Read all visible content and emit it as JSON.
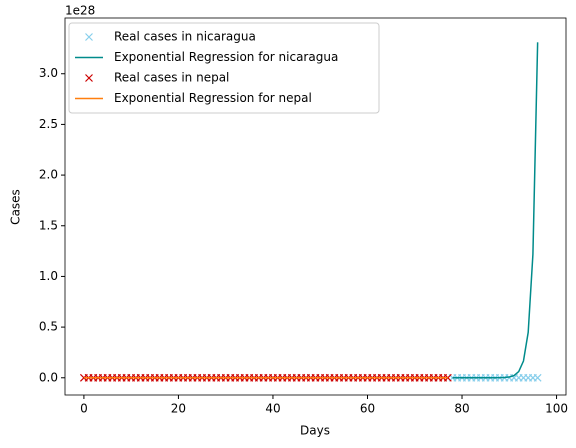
{
  "chart_data": {
    "type": "line",
    "x_label": "Days",
    "y_label": "Cases",
    "y_offset_label": "1e28",
    "xlim": [
      -4,
      102
    ],
    "ylim": [
      -0.17,
      3.55
    ],
    "xticks": [
      0,
      20,
      40,
      60,
      80,
      100
    ],
    "yticks": [
      {
        "value": 0,
        "label": "0.0"
      },
      0.5,
      {
        "value": 1,
        "label": "1.0"
      },
      1.5,
      {
        "value": 2,
        "label": "2.0"
      },
      2.5,
      {
        "value": 3,
        "label": "3.0"
      }
    ],
    "legend": "upper left",
    "series": [
      {
        "name": "Real cases in nicaragua",
        "color": "#87ceeb",
        "style": "marker",
        "x": [
          78,
          79,
          80,
          81,
          82,
          83,
          84,
          85,
          86,
          87,
          88,
          89,
          90,
          91,
          92,
          93,
          94,
          95,
          96
        ],
        "values": [
          0,
          0,
          0,
          0,
          0,
          0,
          0,
          0,
          0,
          0,
          0,
          0,
          0,
          0,
          0,
          0,
          0,
          0,
          0
        ]
      },
      {
        "name": "Exponential Regression for nicaragua",
        "color": "#008b8b",
        "style": "line",
        "x": [
          78,
          79,
          80,
          81,
          82,
          83,
          84,
          85,
          86,
          87,
          88,
          89,
          90,
          91,
          92,
          93,
          94,
          95,
          96
        ],
        "values": [
          0,
          0,
          0,
          0,
          0,
          0,
          0,
          0,
          0.0002,
          0.0004,
          0.0011,
          0.003,
          0.008,
          0.022,
          0.061,
          0.165,
          0.448,
          1.218,
          3.31
        ]
      },
      {
        "name": "Real cases in nepal",
        "color": "#cc0000",
        "style": "marker",
        "x": [
          0,
          1,
          2,
          3,
          4,
          5,
          6,
          7,
          8,
          9,
          10,
          11,
          12,
          13,
          14,
          15,
          16,
          17,
          18,
          19,
          20,
          21,
          22,
          23,
          24,
          25,
          26,
          27,
          28,
          29,
          30,
          31,
          32,
          33,
          34,
          35,
          36,
          37,
          38,
          39,
          40,
          41,
          42,
          43,
          44,
          45,
          46,
          47,
          48,
          49,
          50,
          51,
          52,
          53,
          54,
          55,
          56,
          57,
          58,
          59,
          60,
          61,
          62,
          63,
          64,
          65,
          66,
          67,
          68,
          69,
          70,
          71,
          72,
          73,
          74,
          75,
          76,
          77
        ],
        "values": [
          0,
          0,
          0,
          0,
          0,
          0,
          0,
          0,
          0,
          0,
          0,
          0,
          0,
          0,
          0,
          0,
          0,
          0,
          0,
          0,
          0,
          0,
          0,
          0,
          0,
          0,
          0,
          0,
          0,
          0,
          0,
          0,
          0,
          0,
          0,
          0,
          0,
          0,
          0,
          0,
          0,
          0,
          0,
          0,
          0,
          0,
          0,
          0,
          0,
          0,
          0,
          0,
          0,
          0,
          0,
          0,
          0,
          0,
          0,
          0,
          0,
          0,
          0,
          0,
          0,
          0,
          0,
          0,
          0,
          0,
          0,
          0,
          0,
          0,
          0,
          0,
          0,
          0
        ]
      },
      {
        "name": "Exponential Regression for nepal",
        "color": "#ff7f0e",
        "style": "line",
        "x": [
          0,
          1,
          2,
          3,
          4,
          5,
          6,
          7,
          8,
          9,
          10,
          11,
          12,
          13,
          14,
          15,
          16,
          17,
          18,
          19,
          20,
          21,
          22,
          23,
          24,
          25,
          26,
          27,
          28,
          29,
          30,
          31,
          32,
          33,
          34,
          35,
          36,
          37,
          38,
          39,
          40,
          41,
          42,
          43,
          44,
          45,
          46,
          47,
          48,
          49,
          50,
          51,
          52,
          53,
          54,
          55,
          56,
          57,
          58,
          59,
          60,
          61,
          62,
          63,
          64,
          65,
          66,
          67,
          68,
          69,
          70,
          71,
          72,
          73,
          74,
          75,
          76,
          77
        ],
        "values": [
          0,
          0,
          0,
          0,
          0,
          0,
          0,
          0,
          0,
          0,
          0,
          0,
          0,
          0,
          0,
          0,
          0,
          0,
          0,
          0,
          0,
          0,
          0,
          0,
          0,
          0,
          0,
          0,
          0,
          0,
          0,
          0,
          0,
          0,
          0,
          0,
          0,
          0,
          0,
          0,
          0,
          0,
          0,
          0,
          0,
          0,
          0,
          0,
          0,
          0,
          0,
          0,
          0,
          0,
          0,
          0,
          0,
          0,
          0,
          0,
          0,
          0,
          0,
          0,
          0,
          0,
          0,
          0,
          0,
          0,
          0,
          0,
          0,
          0,
          0,
          0,
          0,
          0
        ]
      }
    ]
  }
}
